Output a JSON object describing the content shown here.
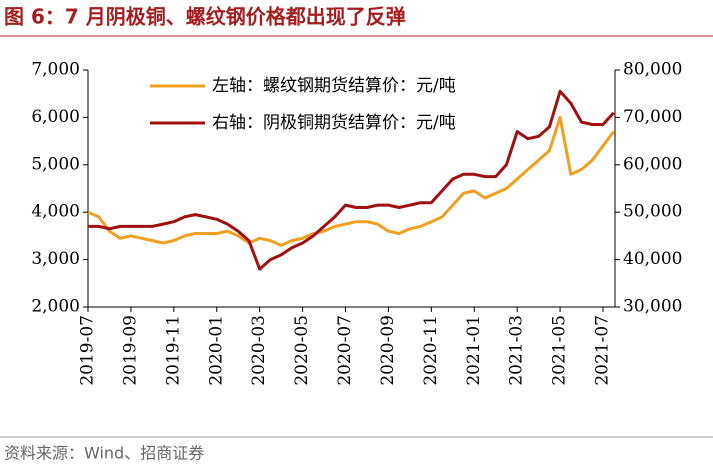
{
  "chart_data": {
    "type": "line",
    "title": "图 6：7 月阴极铜、螺纹钢价格都出现了反弹",
    "source": "资料来源：Wind、招商证券",
    "categories": [
      "2019-07",
      null,
      null,
      null,
      "2019-09",
      null,
      null,
      null,
      "2019-11",
      null,
      null,
      null,
      "2020-01",
      null,
      null,
      null,
      "2020-03",
      null,
      null,
      null,
      "2020-05",
      null,
      null,
      null,
      "2020-07",
      null,
      null,
      null,
      "2020-09",
      null,
      null,
      null,
      "2020-11",
      null,
      null,
      null,
      "2021-01",
      null,
      null,
      null,
      "2021-03",
      null,
      null,
      null,
      "2021-05",
      null,
      null,
      null,
      "2021-07",
      null
    ],
    "series": [
      {
        "name": "左轴：螺纹钢期货结算价：元/吨",
        "color": "#f0a020",
        "axis": "y",
        "values": [
          4000,
          3900,
          3600,
          3450,
          3500,
          3450,
          3400,
          3350,
          3400,
          3500,
          3550,
          3550,
          3550,
          3600,
          3500,
          3350,
          3450,
          3400,
          3300,
          3400,
          3450,
          3550,
          3600,
          3700,
          3750,
          3800,
          3800,
          3750,
          3600,
          3550,
          3650,
          3700,
          3800,
          3900,
          4150,
          4400,
          4450,
          4300,
          4400,
          4500,
          4700,
          4900,
          5100,
          5300,
          6000,
          4800,
          4900,
          5100,
          5400,
          5700
        ]
      },
      {
        "name": "右轴：阴极铜期货结算价：元/吨",
        "color": "#a01010",
        "axis": "y2",
        "values": [
          47000,
          47000,
          46500,
          47000,
          47000,
          47000,
          47000,
          47500,
          48000,
          49000,
          49500,
          49000,
          48500,
          47500,
          46000,
          44000,
          38000,
          40000,
          41000,
          42500,
          43500,
          45000,
          47000,
          49000,
          51500,
          51000,
          51000,
          51500,
          51500,
          51000,
          51500,
          52000,
          52000,
          54500,
          57000,
          58000,
          58000,
          57500,
          57500,
          60000,
          67000,
          65500,
          66000,
          68000,
          75500,
          73000,
          69000,
          68500,
          68500,
          71000
        ]
      }
    ],
    "ylim": [
      2000,
      7000
    ],
    "yticks": [
      {
        "value": 2000,
        "label": "2,000"
      },
      {
        "value": 3000,
        "label": "3,000"
      },
      {
        "value": 4000,
        "label": "4,000"
      },
      {
        "value": 5000,
        "label": "5,000"
      },
      {
        "value": 6000,
        "label": "6,000"
      },
      {
        "value": 7000,
        "label": "7,000"
      }
    ],
    "y2lim": [
      30000,
      80000
    ],
    "y2ticks": [
      {
        "value": 30000,
        "label": "30,000"
      },
      {
        "value": 40000,
        "label": "40,000"
      },
      {
        "value": 50000,
        "label": "50,000"
      },
      {
        "value": 60000,
        "label": "60,000"
      },
      {
        "value": 70000,
        "label": "70,000"
      },
      {
        "value": 80000,
        "label": "80,000"
      }
    ],
    "grid": false
  }
}
